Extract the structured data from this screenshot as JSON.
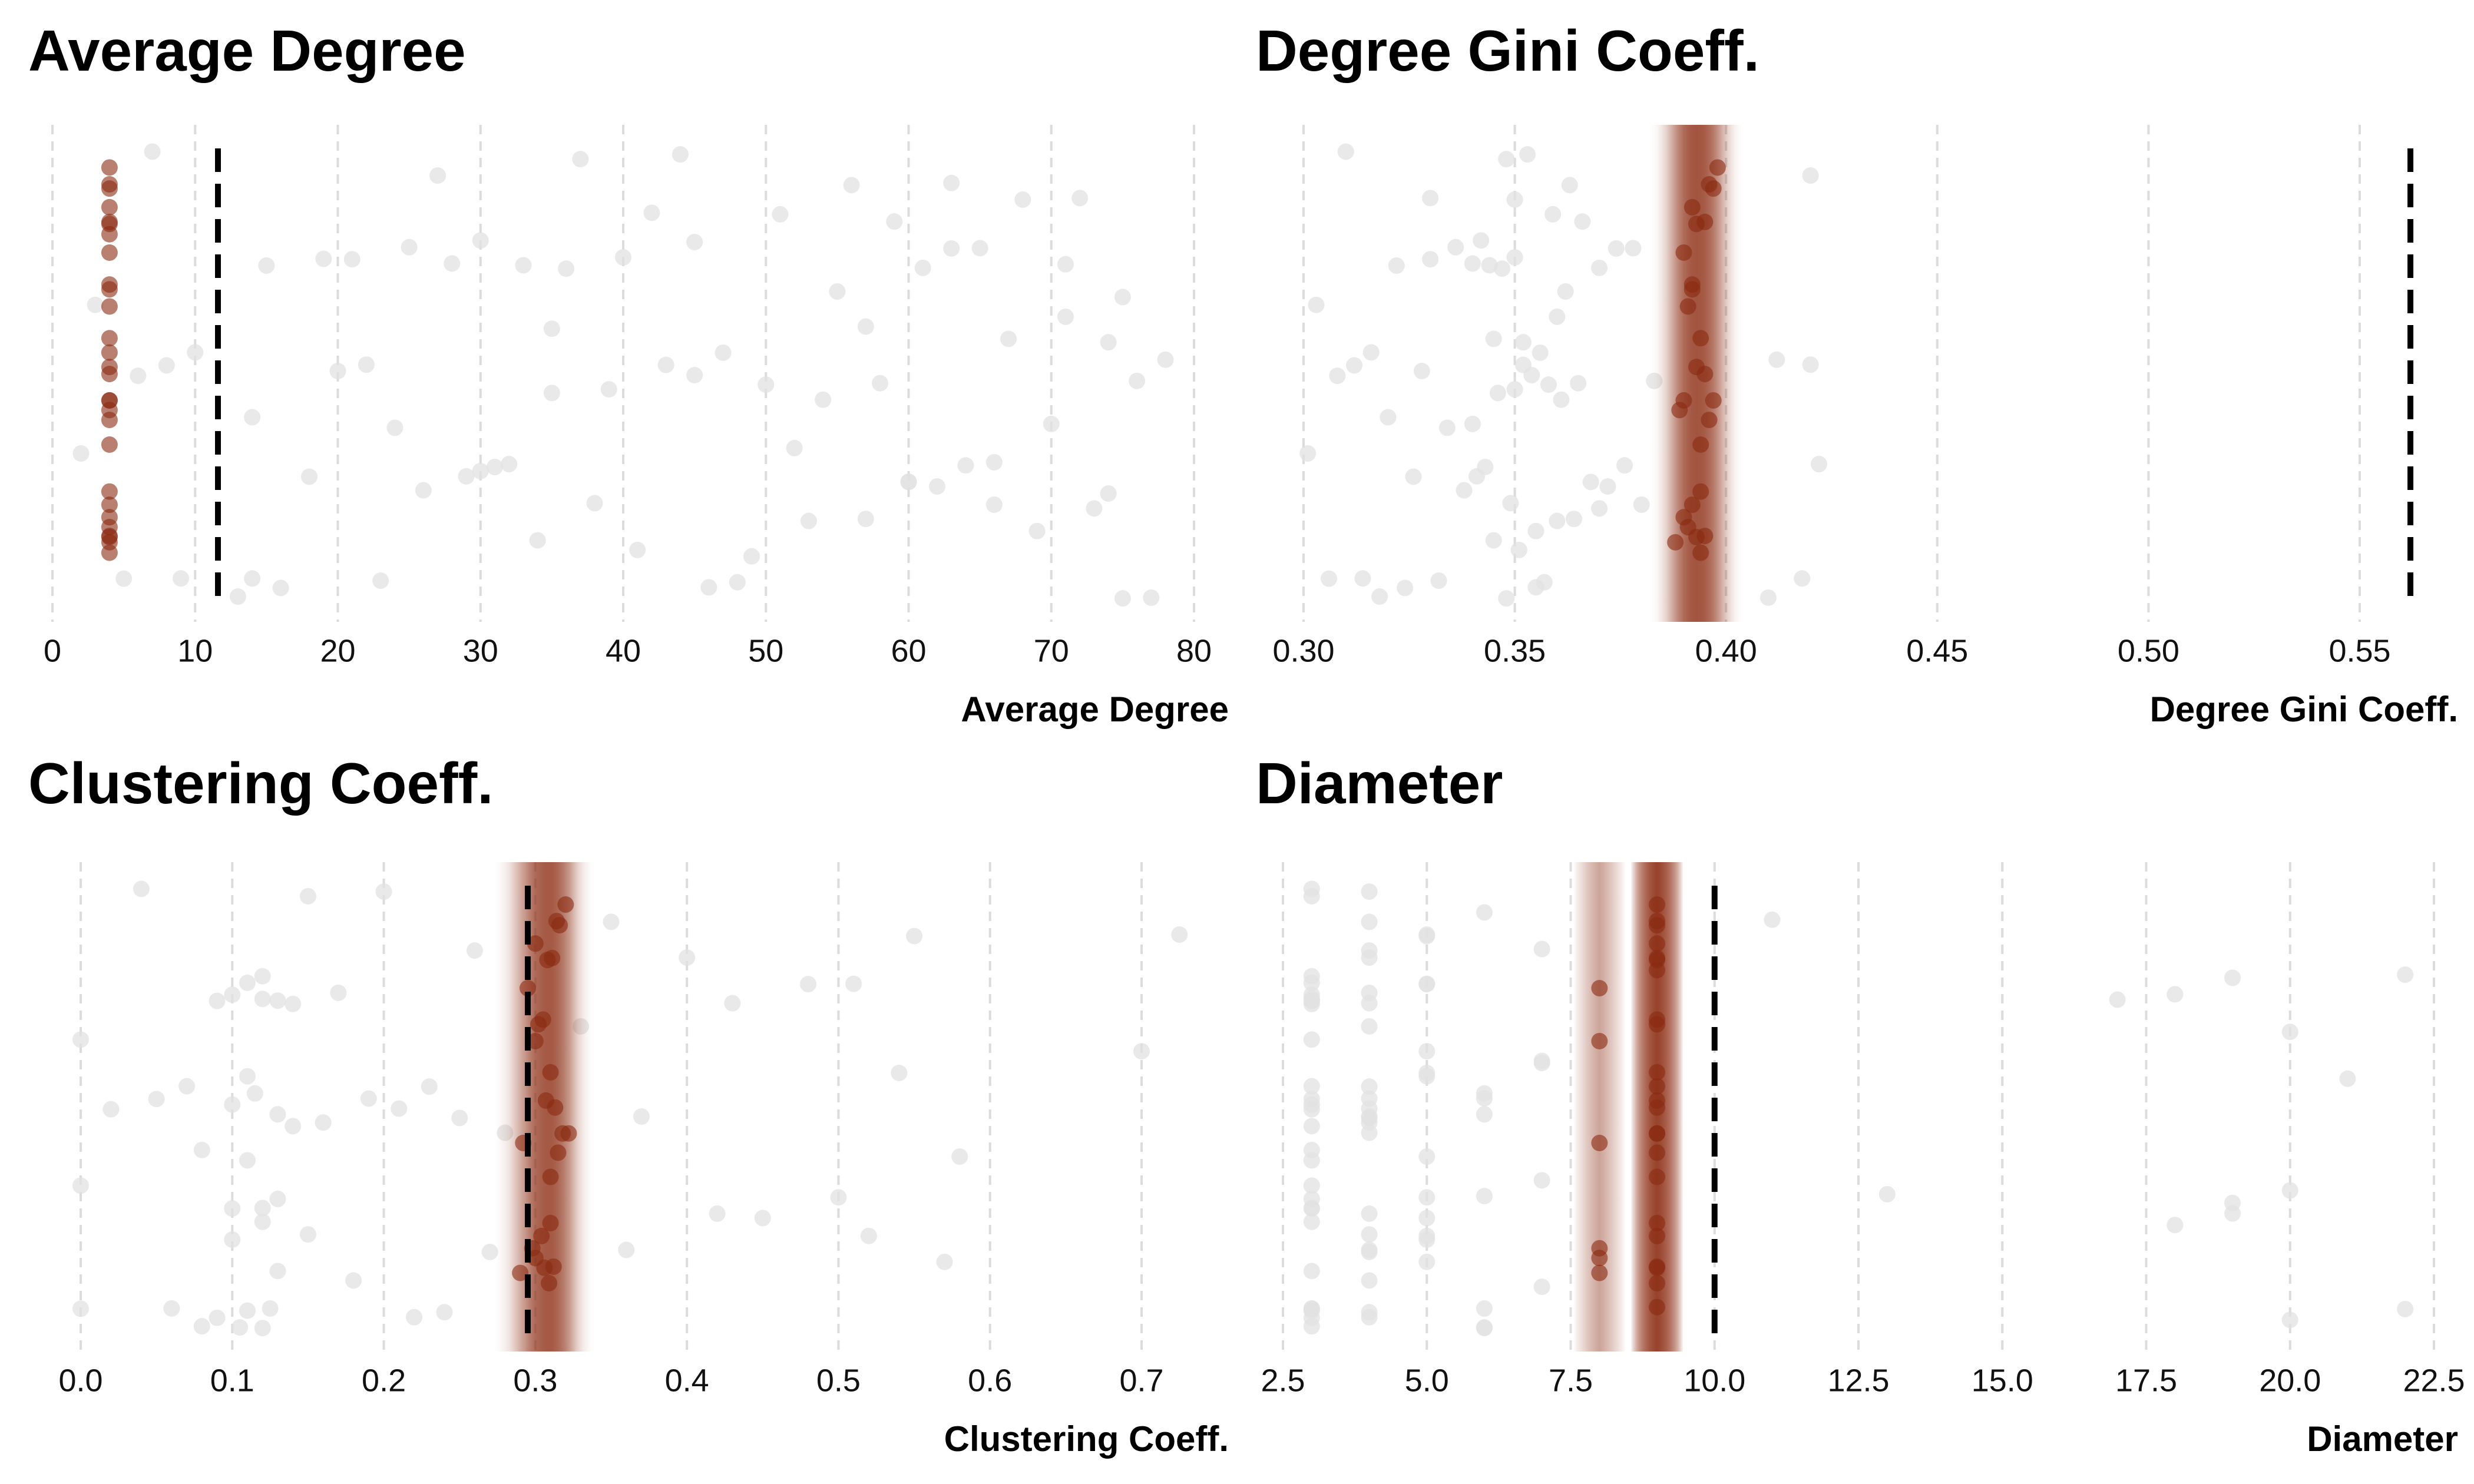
{
  "chart_data": [
    {
      "type": "strip",
      "title": "Average Degree",
      "xlabel": "Average Degree",
      "xlim": [
        0,
        80
      ],
      "xticks": [
        0,
        10,
        20,
        30,
        40,
        50,
        60,
        70,
        80
      ],
      "grid": true,
      "band": false,
      "background_color": "#e2e2e2",
      "highlight_color": "#8b2a10",
      "reference_line": 11.6,
      "background_values": [
        2,
        3,
        5,
        6,
        7,
        8,
        9,
        10,
        13,
        14,
        15,
        16,
        18,
        20,
        21,
        23,
        24,
        25,
        26,
        28,
        29,
        30,
        31,
        33,
        34,
        35,
        36,
        37,
        38,
        39,
        40,
        41,
        43,
        44,
        45,
        46,
        47,
        48,
        50,
        51,
        53,
        54,
        55,
        56,
        57,
        58,
        59,
        60,
        61,
        62,
        63,
        64,
        65,
        66,
        67,
        68,
        69,
        70,
        71,
        72,
        73,
        74,
        75,
        76,
        77,
        78,
        14,
        22,
        27,
        32,
        35,
        42,
        49,
        52,
        57,
        63,
        66,
        71,
        74,
        19,
        30,
        45,
        60,
        75
      ],
      "highlight_values": [
        4,
        4,
        4,
        4,
        4,
        4,
        4,
        4,
        4,
        4,
        4,
        4,
        4,
        4,
        4,
        4,
        4,
        4,
        4,
        4,
        4,
        4,
        4,
        4,
        4,
        4,
        4,
        4
      ]
    },
    {
      "type": "strip",
      "title": "Degree Gini Coeff.",
      "xlabel": "Degree Gini Coeff.",
      "xlim": [
        0.3,
        0.55
      ],
      "xticks": [
        {
          "value": 0.3,
          "label": "0.30"
        },
        0.35,
        {
          "value": 0.4,
          "label": "0.40"
        },
        0.45,
        {
          "value": 0.5,
          "label": "0.50"
        },
        0.55
      ],
      "grid": true,
      "band": true,
      "background_color": "#e2e2e2",
      "highlight_color": "#8b2a10",
      "reference_line": 0.562,
      "background_values": [
        0.301,
        0.303,
        0.306,
        0.308,
        0.31,
        0.312,
        0.314,
        0.316,
        0.318,
        0.32,
        0.322,
        0.324,
        0.326,
        0.328,
        0.33,
        0.332,
        0.334,
        0.336,
        0.338,
        0.34,
        0.341,
        0.342,
        0.343,
        0.344,
        0.345,
        0.346,
        0.347,
        0.348,
        0.349,
        0.35,
        0.35,
        0.351,
        0.352,
        0.353,
        0.354,
        0.355,
        0.356,
        0.357,
        0.358,
        0.359,
        0.36,
        0.361,
        0.362,
        0.363,
        0.364,
        0.365,
        0.366,
        0.368,
        0.37,
        0.372,
        0.374,
        0.376,
        0.378,
        0.38,
        0.345,
        0.35,
        0.355,
        0.34,
        0.36,
        0.33,
        0.37,
        0.352,
        0.348,
        0.383,
        0.41,
        0.412,
        0.418,
        0.42,
        0.42,
        0.422
      ],
      "highlight_values": [
        0.388,
        0.389,
        0.39,
        0.39,
        0.391,
        0.391,
        0.392,
        0.392,
        0.392,
        0.393,
        0.393,
        0.393,
        0.394,
        0.394,
        0.394,
        0.395,
        0.395,
        0.395,
        0.396,
        0.396,
        0.397,
        0.397,
        0.398,
        0.39,
        0.392,
        0.394
      ]
    },
    {
      "type": "strip",
      "title": "Clustering Coeff.",
      "xlabel": "Clustering Coeff.",
      "xlim": [
        0,
        0.7
      ],
      "xticks": [
        {
          "value": 0,
          "label": "0.0"
        },
        0.1,
        0.2,
        0.3,
        0.4,
        0.5,
        0.6,
        0.7
      ],
      "grid": true,
      "band": true,
      "background_color": "#e2e2e2",
      "highlight_color": "#8b2a10",
      "reference_line": 0.295,
      "background_values": [
        0,
        0,
        0,
        0.02,
        0.04,
        0.05,
        0.06,
        0.07,
        0.08,
        0.08,
        0.09,
        0.09,
        0.1,
        0.1,
        0.1,
        0.11,
        0.11,
        0.11,
        0.12,
        0.12,
        0.12,
        0.12,
        0.13,
        0.13,
        0.13,
        0.14,
        0.14,
        0.15,
        0.15,
        0.16,
        0.17,
        0.18,
        0.19,
        0.2,
        0.21,
        0.22,
        0.23,
        0.24,
        0.25,
        0.26,
        0.27,
        0.28,
        0.33,
        0.35,
        0.36,
        0.37,
        0.4,
        0.42,
        0.43,
        0.45,
        0.48,
        0.5,
        0.51,
        0.52,
        0.54,
        0.55,
        0.57,
        0.58,
        0.7,
        0.725,
        0.1,
        0.11,
        0.12,
        0.13,
        0.105,
        0.115,
        0.125
      ],
      "highlight_values": [
        0.29,
        0.292,
        0.295,
        0.298,
        0.3,
        0.3,
        0.302,
        0.304,
        0.305,
        0.306,
        0.307,
        0.308,
        0.309,
        0.31,
        0.31,
        0.311,
        0.312,
        0.313,
        0.314,
        0.315,
        0.316,
        0.318,
        0.32,
        0.322,
        0.3,
        0.31
      ]
    },
    {
      "type": "strip",
      "title": "Diameter",
      "xlabel": "Diameter",
      "xlim": [
        2.5,
        22.5
      ],
      "xticks": [
        2.5,
        {
          "value": 5,
          "label": "5.0"
        },
        7.5,
        {
          "value": 10,
          "label": "10.0"
        },
        12.5,
        {
          "value": 15,
          "label": "15.0"
        },
        17.5,
        {
          "value": 20,
          "label": "20.0"
        },
        22.5
      ],
      "grid": true,
      "band": true,
      "background_color": "#e2e2e2",
      "highlight_color": "#8b2a10",
      "reference_line": 10,
      "background_values": [
        3,
        3,
        3,
        3,
        3,
        3,
        3,
        3,
        3,
        3,
        3,
        3,
        3,
        3,
        3,
        3,
        3,
        3,
        3,
        3,
        3,
        3,
        3,
        3,
        3,
        3,
        3,
        3,
        4,
        4,
        4,
        4,
        4,
        4,
        4,
        4,
        4,
        4,
        4,
        4,
        4,
        4,
        4,
        4,
        4,
        4,
        4,
        4,
        4,
        5,
        5,
        5,
        5,
        5,
        5,
        5,
        5,
        5,
        5,
        5,
        5,
        5,
        6,
        6,
        6,
        6,
        6,
        6,
        6,
        6,
        7,
        7,
        7,
        7,
        7,
        11,
        13,
        17,
        18,
        18,
        19,
        19,
        19,
        20,
        20,
        20,
        21,
        22,
        22
      ],
      "highlight_values": [
        8,
        8,
        8,
        8,
        8,
        8,
        9,
        9,
        9,
        9,
        9,
        9,
        9,
        9,
        9,
        9,
        9,
        9,
        9,
        9,
        9,
        9,
        9,
        9,
        9,
        9,
        9,
        9,
        9
      ]
    }
  ]
}
